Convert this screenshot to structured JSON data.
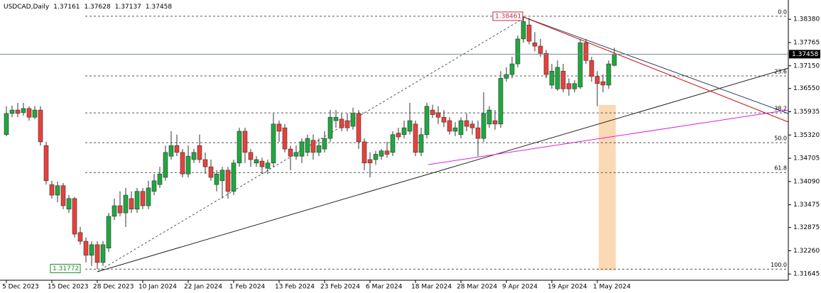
{
  "chart_data": {
    "type": "candlestick",
    "title": "USDCAD,Daily",
    "categories": [
      "5 Dec 2023",
      null,
      null,
      null,
      null,
      null,
      null,
      null,
      "15 Dec 2023",
      null,
      null,
      null,
      null,
      null,
      null,
      null,
      "28 Dec 2023",
      null,
      null,
      null,
      null,
      null,
      null,
      null,
      "10 Jan 2024",
      null,
      null,
      null,
      null,
      null,
      null,
      null,
      "22 Jan 2024",
      null,
      null,
      null,
      null,
      null,
      null,
      null,
      "1 Feb 2024",
      null,
      null,
      null,
      null,
      null,
      null,
      null,
      "13 Feb 2024",
      null,
      null,
      null,
      null,
      null,
      null,
      null,
      "23 Feb 2024",
      null,
      null,
      null,
      null,
      null,
      null,
      null,
      "6 Mar 2024",
      null,
      null,
      null,
      null,
      null,
      null,
      null,
      "18 Mar 2024",
      null,
      null,
      null,
      null,
      null,
      null,
      null,
      "28 Mar 2024",
      null,
      null,
      null,
      null,
      null,
      null,
      null,
      "9 Apr 2024",
      null,
      null,
      null,
      null,
      null,
      null,
      null,
      "19 Apr 2024",
      null,
      null,
      null,
      null,
      null,
      null,
      null,
      "1 May 2024",
      null,
      null,
      null
    ],
    "open": [
      1.3533,
      1.3589,
      1.3598,
      1.3591,
      1.3602,
      1.3579,
      1.3598,
      1.3504,
      1.3401,
      1.3373,
      1.3398,
      1.3336,
      1.3364,
      1.3274,
      1.3251,
      1.3214,
      1.3242,
      1.3195,
      1.3233,
      1.3317,
      1.3345,
      1.3326,
      1.3364,
      1.3336,
      1.3383,
      1.3345,
      1.3383,
      1.3401,
      1.342,
      1.3476,
      1.3504,
      1.3486,
      1.3429,
      1.3467,
      1.3504,
      1.3467,
      1.3448,
      1.3401,
      1.3411,
      1.3439,
      1.3383,
      1.3458,
      1.3542,
      1.3486,
      1.3458,
      1.3463,
      1.3444,
      1.3458,
      1.3561,
      1.3551,
      1.3495,
      1.3476,
      1.3476,
      1.3486,
      1.3518,
      1.3486,
      1.3495,
      1.3523,
      1.357,
      1.3574,
      1.357,
      1.3555,
      1.3589,
      1.3514,
      1.3467,
      1.3467,
      1.3476,
      1.349,
      1.3486,
      1.3537,
      1.3533,
      1.3542,
      1.3561,
      1.3486,
      1.3533,
      1.3598,
      1.3591,
      1.3579,
      1.357,
      1.3542,
      1.3533,
      1.357,
      1.3561,
      1.3551,
      1.3523,
      1.3561,
      1.357,
      1.3561,
      1.3682,
      1.3692,
      1.372,
      1.3786,
      1.3823,
      1.3776,
      1.3767,
      1.3748,
      1.3664,
      1.3654,
      1.3701,
      1.3668,
      1.3654,
      1.3659,
      1.3776,
      1.3729,
      1.3687,
      1.3673,
      1.3664,
      1.37161
    ],
    "high": [
      1.3608,
      1.361,
      1.3617,
      1.3617,
      1.3608,
      1.3608,
      1.3608,
      1.3514,
      1.3411,
      1.3409,
      1.3405,
      1.3373,
      1.3368,
      1.3289,
      1.3261,
      1.3251,
      1.3251,
      1.3251,
      1.3326,
      1.3364,
      1.3383,
      1.3392,
      1.3383,
      1.3392,
      1.3392,
      1.3411,
      1.3429,
      1.3448,
      1.3504,
      1.3542,
      1.3533,
      1.3495,
      1.3504,
      1.3495,
      1.3533,
      1.3486,
      1.3467,
      1.3439,
      1.3448,
      1.3448,
      1.3467,
      1.3551,
      1.3551,
      1.3495,
      1.3476,
      1.3472,
      1.3467,
      1.3589,
      1.357,
      1.3561,
      1.3504,
      1.3504,
      1.3523,
      1.3533,
      1.3533,
      1.3523,
      1.3542,
      1.3598,
      1.3598,
      1.3589,
      1.3589,
      1.3604,
      1.3598,
      1.3523,
      1.3486,
      1.349,
      1.3495,
      1.3514,
      1.3542,
      1.3551,
      1.357,
      1.3617,
      1.357,
      1.3551,
      1.3617,
      1.3612,
      1.3608,
      1.3598,
      1.3579,
      1.3566,
      1.3579,
      1.3589,
      1.357,
      1.357,
      1.3645,
      1.3608,
      1.3598,
      1.3701,
      1.3711,
      1.3739,
      1.3795,
      1.38461,
      1.3842,
      1.3804,
      1.3786,
      1.3757,
      1.372,
      1.3729,
      1.372,
      1.3682,
      1.3677,
      1.3786,
      1.3786,
      1.3739,
      1.3701,
      1.3692,
      1.3729,
      1.37628
    ],
    "low": [
      1.3529,
      1.3579,
      1.3579,
      1.3583,
      1.357,
      1.3574,
      1.3504,
      1.3401,
      1.3364,
      1.3354,
      1.3336,
      1.3326,
      1.3261,
      1.3242,
      1.3195,
      1.3186,
      1.31772,
      1.3186,
      1.3223,
      1.3307,
      1.3317,
      1.3289,
      1.3326,
      1.3326,
      1.3336,
      1.3336,
      1.3373,
      1.3392,
      1.3411,
      1.3467,
      1.3476,
      1.342,
      1.342,
      1.3458,
      1.3458,
      1.3429,
      1.3411,
      1.3383,
      1.3364,
      1.3364,
      1.3373,
      1.3448,
      1.3458,
      1.3448,
      1.3448,
      1.3429,
      1.3429,
      1.3448,
      1.3514,
      1.3486,
      1.3439,
      1.3467,
      1.3458,
      1.3476,
      1.3467,
      1.3476,
      1.3486,
      1.3514,
      1.3551,
      1.3542,
      1.3542,
      1.3546,
      1.3495,
      1.3439,
      1.342,
      1.3453,
      1.3467,
      1.3472,
      1.3476,
      1.3518,
      1.3523,
      1.3533,
      1.3476,
      1.3476,
      1.3523,
      1.3577,
      1.3561,
      1.3553,
      1.3533,
      1.3529,
      1.3523,
      1.3542,
      1.3533,
      1.3476,
      1.3514,
      1.3551,
      1.3546,
      1.3551,
      1.3673,
      1.3682,
      1.3711,
      1.3776,
      1.3772,
      1.3753,
      1.3739,
      1.3682,
      1.3654,
      1.3649,
      1.3645,
      1.3636,
      1.3645,
      1.3654,
      1.372,
      1.3673,
      1.3608,
      1.3645,
      1.3654,
      1.37137
    ],
    "close": [
      1.3589,
      1.3598,
      1.3589,
      1.3602,
      1.3579,
      1.3598,
      1.3514,
      1.3411,
      1.3373,
      1.3398,
      1.3345,
      1.3364,
      1.327,
      1.3251,
      1.3214,
      1.3242,
      1.3195,
      1.3242,
      1.3317,
      1.3345,
      1.3326,
      1.3373,
      1.3336,
      1.3383,
      1.3345,
      1.3392,
      1.3411,
      1.3429,
      1.3486,
      1.3504,
      1.3486,
      1.3429,
      1.3476,
      1.3486,
      1.3467,
      1.3448,
      1.342,
      1.3429,
      1.3439,
      1.3383,
      1.3458,
      1.3542,
      1.3486,
      1.3467,
      1.3467,
      1.3448,
      1.3458,
      1.3561,
      1.3542,
      1.3495,
      1.3476,
      1.3486,
      1.3514,
      1.3523,
      1.3486,
      1.3504,
      1.3523,
      1.3579,
      1.3579,
      1.3551,
      1.3551,
      1.3589,
      1.3514,
      1.3458,
      1.3458,
      1.3481,
      1.349,
      1.3481,
      1.3533,
      1.3527,
      1.3551,
      1.357,
      1.3486,
      1.3533,
      1.3608,
      1.3586,
      1.3579,
      1.3566,
      1.3542,
      1.3551,
      1.357,
      1.3555,
      1.3551,
      1.3523,
      1.3589,
      1.3598,
      1.3561,
      1.3682,
      1.3692,
      1.372,
      1.3786,
      1.3832,
      1.378,
      1.3767,
      1.3748,
      1.3692,
      1.3701,
      1.3711,
      1.3654,
      1.3654,
      1.3668,
      1.3776,
      1.3729,
      1.3687,
      1.3668,
      1.3664,
      1.372,
      1.37458
    ],
    "up_color": "#1fa83f",
    "down_color": "#e8413a",
    "ylim": [
      1.3148,
      1.3889
    ],
    "yticks": [
      {
        "value": 1.3838,
        "label": "1.38380"
      },
      {
        "value": 1.37765,
        "label": "1.37765"
      },
      {
        "value": 1.3715,
        "label": "1.37150"
      },
      {
        "value": 1.3655,
        "label": "1.36550"
      },
      {
        "value": 1.35935,
        "label": "1.35935"
      },
      {
        "value": 1.3532,
        "label": "1.35320"
      },
      {
        "value": 1.34705,
        "label": "1.34705"
      },
      {
        "value": 1.3409,
        "label": "1.34090"
      },
      {
        "value": 1.33475,
        "label": "1.33475"
      },
      {
        "value": 1.32875,
        "label": "1.32875"
      },
      {
        "value": 1.3226,
        "label": "1.32260"
      },
      {
        "value": 1.31645,
        "label": "1.31645"
      }
    ],
    "fibonacci": {
      "high": 1.38461,
      "low": 1.31772,
      "levels": [
        {
          "value": 0,
          "label": "0.0"
        },
        23.6,
        38.2,
        {
          "value": 50,
          "label": "50.0"
        },
        61.8,
        {
          "value": 100,
          "label": "100.0"
        }
      ]
    }
  }
}
